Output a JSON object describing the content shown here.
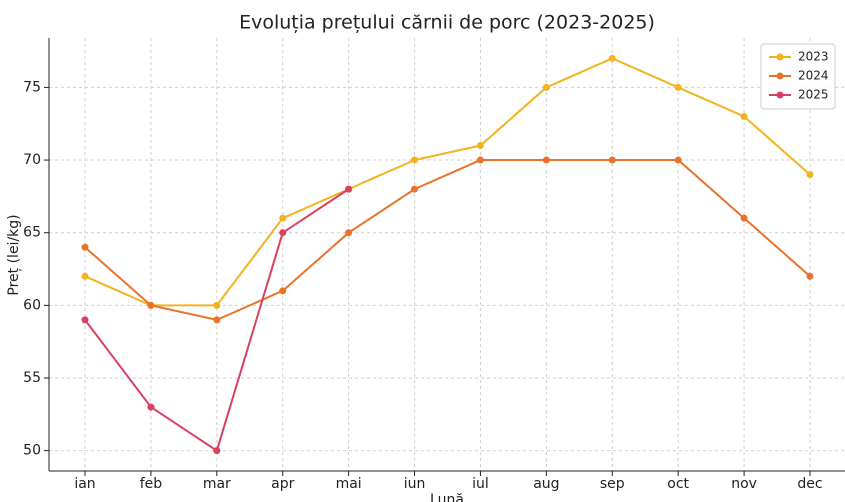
{
  "chart_data": {
    "type": "line",
    "title": "Evoluția prețului cărnii de porc (2023-2025)",
    "xlabel": "Lună",
    "ylabel": "Preț (lei/kg)",
    "categories": [
      "ian",
      "feb",
      "mar",
      "apr",
      "mai",
      "iun",
      "iul",
      "aug",
      "sep",
      "oct",
      "nov",
      "dec"
    ],
    "series": [
      {
        "name": "2023",
        "color": "#f2b31e",
        "values": [
          62,
          60,
          60,
          66,
          68,
          70,
          71,
          75,
          77,
          75,
          73,
          69
        ]
      },
      {
        "name": "2024",
        "color": "#e8722c",
        "values": [
          64,
          60,
          59,
          61,
          65,
          68,
          70,
          70,
          70,
          70,
          66,
          62
        ]
      },
      {
        "name": "2025",
        "color": "#db3f60",
        "values": [
          59,
          53,
          50,
          65,
          68,
          null,
          null,
          null,
          null,
          null,
          null,
          null
        ]
      }
    ],
    "ylim": [
      48.6,
      78.4
    ],
    "yticks": [
      50,
      55,
      60,
      65,
      70,
      75
    ],
    "grid": true,
    "legend": "upper right"
  }
}
